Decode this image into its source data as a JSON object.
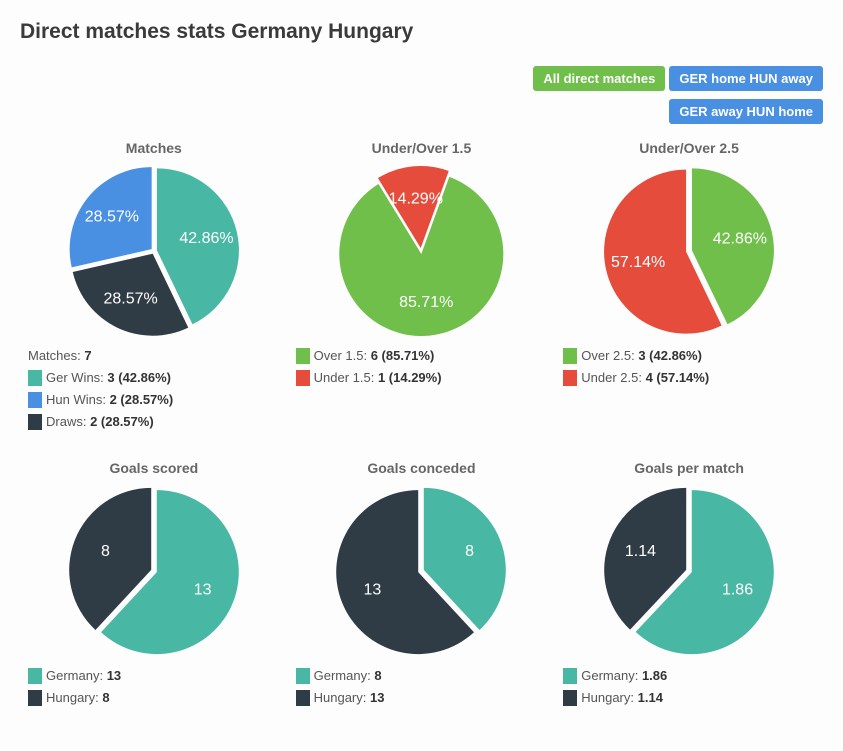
{
  "page_title": "Direct matches stats Germany Hungary",
  "tabs": [
    {
      "label": "All direct matches",
      "active": true
    },
    {
      "label": "GER home HUN away",
      "active": false
    },
    {
      "label": "GER away HUN home",
      "active": false
    }
  ],
  "colors": {
    "teal": "#48b7a3",
    "blue": "#4a90e2",
    "dark": "#2f3b45",
    "green": "#6fbf4a",
    "red": "#e64c3c",
    "label_fill": "#ffffff",
    "title_color": "#666666",
    "background": "#fdfdfd"
  },
  "charts": [
    {
      "id": "matches",
      "title": "Matches",
      "type": "pie",
      "radius": 82,
      "start_angle": 0,
      "pull_out": 3,
      "label_radius_factor": 0.62,
      "slices": [
        {
          "value": 42.86,
          "color": "#48b7a3",
          "label": "42.86%"
        },
        {
          "value": 28.57,
          "color": "#2f3b45",
          "label": "28.57%"
        },
        {
          "value": 28.57,
          "color": "#4a90e2",
          "label": "28.57%"
        }
      ],
      "legend_header": "Matches: <b>7</b>",
      "legend": [
        {
          "swatch": "#48b7a3",
          "text": "Ger Wins: <b>3 (42.86%)</b>"
        },
        {
          "swatch": "#4a90e2",
          "text": "Hun Wins: <b>2 (28.57%)</b>"
        },
        {
          "swatch": "#2f3b45",
          "text": "Draws: <b>2 (28.57%)</b>"
        }
      ]
    },
    {
      "id": "under_over_15",
      "title": "Under/Over 1.5",
      "type": "pie",
      "radius": 82,
      "start_angle": 20,
      "pull_out": 3,
      "label_radius_factor": 0.6,
      "slices": [
        {
          "value": 85.71,
          "color": "#6fbf4a",
          "label": "85.71%"
        },
        {
          "value": 14.29,
          "color": "#e64c3c",
          "label": "14.29%"
        }
      ],
      "legend": [
        {
          "swatch": "#6fbf4a",
          "text": "Over 1.5: <b>6 (85.71%)</b>"
        },
        {
          "swatch": "#e64c3c",
          "text": "Under 1.5: <b>1 (14.29%)</b>"
        }
      ]
    },
    {
      "id": "under_over_25",
      "title": "Under/Over 2.5",
      "type": "pie",
      "radius": 82,
      "start_angle": 0,
      "pull_out": 3,
      "label_radius_factor": 0.6,
      "slices": [
        {
          "value": 42.86,
          "color": "#6fbf4a",
          "label": "42.86%"
        },
        {
          "value": 57.14,
          "color": "#e64c3c",
          "label": "57.14%"
        }
      ],
      "legend": [
        {
          "swatch": "#6fbf4a",
          "text": "Over 2.5: <b>3 (42.86%)</b>"
        },
        {
          "swatch": "#e64c3c",
          "text": "Under 2.5: <b>4 (57.14%)</b>"
        }
      ]
    },
    {
      "id": "goals_scored",
      "title": "Goals scored",
      "type": "pie",
      "radius": 82,
      "start_angle": 0,
      "pull_out": 3,
      "label_radius_factor": 0.6,
      "slices": [
        {
          "value": 61.9,
          "color": "#48b7a3",
          "label": "13"
        },
        {
          "value": 38.1,
          "color": "#2f3b45",
          "label": "8"
        }
      ],
      "legend": [
        {
          "swatch": "#48b7a3",
          "text": "Germany: <b>13</b>"
        },
        {
          "swatch": "#2f3b45",
          "text": "Hungary: <b>8</b>"
        }
      ]
    },
    {
      "id": "goals_conceded",
      "title": "Goals conceded",
      "type": "pie",
      "radius": 82,
      "start_angle": 0,
      "pull_out": 3,
      "label_radius_factor": 0.6,
      "slices": [
        {
          "value": 38.1,
          "color": "#48b7a3",
          "label": "8"
        },
        {
          "value": 61.9,
          "color": "#2f3b45",
          "label": "13"
        }
      ],
      "legend": [
        {
          "swatch": "#48b7a3",
          "text": "Germany: <b>8</b>"
        },
        {
          "swatch": "#2f3b45",
          "text": "Hungary: <b>13</b>"
        }
      ]
    },
    {
      "id": "goals_per_match",
      "title": "Goals per match",
      "type": "pie",
      "radius": 82,
      "start_angle": 0,
      "pull_out": 3,
      "label_radius_factor": 0.6,
      "slices": [
        {
          "value": 62.0,
          "color": "#48b7a3",
          "label": "1.86"
        },
        {
          "value": 38.0,
          "color": "#2f3b45",
          "label": "1.14"
        }
      ],
      "legend": [
        {
          "swatch": "#48b7a3",
          "text": "Germany: <b>1.86</b>"
        },
        {
          "swatch": "#2f3b45",
          "text": "Hungary: <b>1.14</b>"
        }
      ]
    }
  ]
}
